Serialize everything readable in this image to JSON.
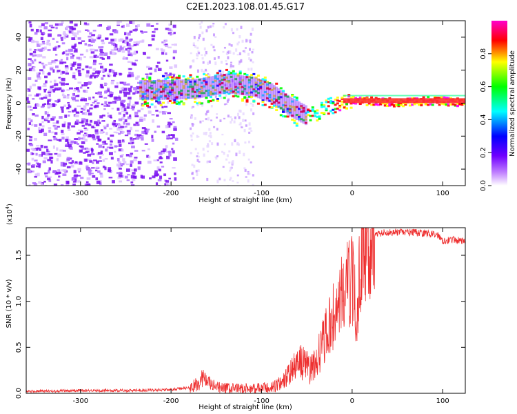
{
  "title": "C2E1.2023.108.01.45.G17",
  "chart_data": [
    {
      "type": "heatmap",
      "xlabel": "Height of straight line (km)",
      "ylabel": "Frequency (Hz)",
      "xlim": [
        -360,
        125
      ],
      "ylim": [
        -50,
        50
      ],
      "xticks": [
        -300,
        -200,
        -100,
        0,
        100
      ],
      "yticks": [
        -40,
        -20,
        0,
        20,
        40
      ],
      "grid": false,
      "colorbar": {
        "label": "Normalized spectral amplitude",
        "range": [
          0,
          1
        ],
        "ticks": [
          "0.0",
          "0.2",
          "0.4",
          "0.6",
          "0.8"
        ],
        "colormap": [
          "#ff00ff",
          "#ff0000",
          "#ffff00",
          "#00ff00",
          "#00ffff",
          "#0000ff",
          "#8000ff",
          "#ffffff"
        ]
      },
      "ridge": [
        {
          "x": -230,
          "y": 8
        },
        {
          "x": -200,
          "y": 8
        },
        {
          "x": -170,
          "y": 9
        },
        {
          "x": -140,
          "y": 12
        },
        {
          "x": -110,
          "y": 10
        },
        {
          "x": -90,
          "y": 6
        },
        {
          "x": -70,
          "y": -2
        },
        {
          "x": -50,
          "y": -8
        },
        {
          "x": -30,
          "y": -2
        },
        {
          "x": -10,
          "y": 2
        },
        {
          "x": 0,
          "y": 2
        },
        {
          "x": 50,
          "y": 1
        },
        {
          "x": 90,
          "y": 2
        },
        {
          "x": 125,
          "y": 1
        }
      ]
    },
    {
      "type": "line",
      "xlabel": "Height of straight line (km)",
      "ylabel": "SNR (10 * v/v)",
      "yunit": "(x10",
      "yunit_exp": "4",
      "yunit_close": ")",
      "xlim": [
        -360,
        125
      ],
      "ylim": [
        0,
        1.8
      ],
      "xticks": [
        -300,
        -200,
        -100,
        0,
        100
      ],
      "yticks": [
        "0.0",
        "0.5",
        "1.0",
        "1.5"
      ],
      "series_color": "#ee3030",
      "series": [
        {
          "x": [
            -360,
            -300,
            -250,
            -200,
            -180,
            -170,
            -165,
            -160,
            -150,
            -130,
            -110,
            -90,
            -80,
            -70,
            -60,
            -50,
            -45,
            -40,
            -30,
            -20,
            -10,
            0,
            5,
            10,
            15,
            20,
            30,
            40,
            60,
            80,
            95,
            100,
            110,
            125
          ],
          "y": [
            0.02,
            0.03,
            0.03,
            0.04,
            0.06,
            0.1,
            0.18,
            0.12,
            0.06,
            0.05,
            0.05,
            0.06,
            0.1,
            0.2,
            0.35,
            0.3,
            0.25,
            0.35,
            0.6,
            0.85,
            1.1,
            1.25,
            0.8,
            1.55,
            1.65,
            1.7,
            1.74,
            1.75,
            1.75,
            1.74,
            1.72,
            1.66,
            1.67,
            1.65
          ]
        }
      ]
    }
  ]
}
